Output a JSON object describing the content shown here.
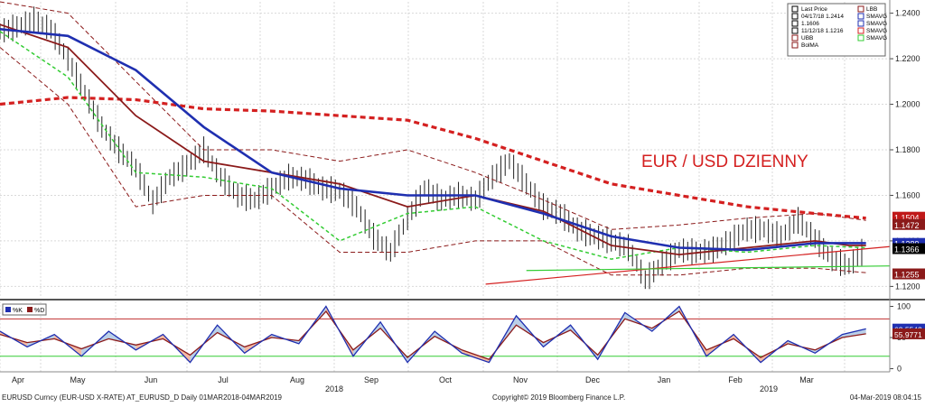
{
  "chart_data": [
    {
      "type": "line",
      "title": "EUR / USD DZIENNY",
      "ylim": [
        1.115,
        1.245
      ],
      "yticks": [
        1.12,
        1.14,
        1.16,
        1.18,
        1.2,
        1.22,
        1.24
      ],
      "ytick_labels": [
        "1.1200",
        "1.1400",
        "1.1600",
        "1.1800",
        "1.2000",
        "1.2200",
        "1.2400"
      ],
      "grid": true,
      "legend_position": "top-right",
      "legend": {
        "rows": [
          {
            "label": "Last Price",
            "color": "#000000"
          },
          {
            "label": "04/17/18 1.2414",
            "color": "#000000"
          },
          {
            "label": "1.1606",
            "color": "#000000"
          },
          {
            "label": "11/12/18 1.1216",
            "color": "#000000"
          },
          {
            "label": "UBB",
            "color": "#8b1a1a"
          },
          {
            "label": "BolMA",
            "color": "#8b1a1a"
          }
        ],
        "right_rows": [
          {
            "label": "LBB",
            "color": "#8b1a1a"
          },
          {
            "label": "SMAVG",
            "color": "#1f2fb0"
          },
          {
            "label": "SMAVG",
            "color": "#1f2fb0"
          },
          {
            "label": "SMAVG",
            "color": "#d42020"
          },
          {
            "label": "SMAVG",
            "color": "#33cc33"
          }
        ]
      },
      "price_tags": [
        {
          "label": "1.1504",
          "value": 1.1504,
          "color": "#c01818"
        },
        {
          "label": "1.1472",
          "value": 1.1472,
          "color": "#8b1a1a"
        },
        {
          "label": "1.1389",
          "value": 1.1389,
          "color": "#1f2fb0"
        },
        {
          "label": "1.1366",
          "value": 1.1366,
          "color": "#000000"
        },
        {
          "label": "1.1255",
          "value": 1.1255,
          "color": "#8b1a1a"
        }
      ],
      "x_month_labels": [
        "Apr",
        "May",
        "Jun",
        "Jul",
        "Aug",
        "Sep",
        "Oct",
        "Nov",
        "Dec",
        "Jan",
        "Feb",
        "Mar"
      ],
      "x_year_labels": [
        "2018",
        "2019"
      ],
      "series": [
        {
          "name": "Last Price",
          "color": "#000000",
          "x": [
            0,
            5,
            10,
            15,
            20,
            25,
            30,
            35,
            40,
            45,
            50,
            55,
            60,
            65,
            70,
            75,
            80,
            85,
            90,
            95,
            100,
            105,
            110,
            115,
            120,
            125,
            130,
            135,
            140,
            145,
            150,
            155,
            160,
            165,
            170,
            175,
            180,
            185,
            190,
            195,
            200,
            205,
            210,
            215,
            220,
            225,
            230,
            235,
            240,
            245,
            250,
            255
          ],
          "y": [
            1.232,
            1.234,
            1.237,
            1.233,
            1.22,
            1.205,
            1.19,
            1.18,
            1.172,
            1.157,
            1.168,
            1.173,
            1.18,
            1.168,
            1.16,
            1.158,
            1.163,
            1.168,
            1.167,
            1.163,
            1.162,
            1.155,
            1.142,
            1.135,
            1.15,
            1.163,
            1.158,
            1.16,
            1.158,
            1.168,
            1.175,
            1.165,
            1.155,
            1.152,
            1.145,
            1.142,
            1.14,
            1.137,
            1.123,
            1.13,
            1.136,
            1.135,
            1.136,
            1.14,
            1.145,
            1.145,
            1.142,
            1.149,
            1.141,
            1.132,
            1.129,
            1.137
          ]
        },
        {
          "name": "SMAVG",
          "color": "#1f2fb0",
          "x": [
            0,
            20,
            40,
            60,
            80,
            100,
            120,
            140,
            160,
            180,
            200,
            220,
            240,
            250,
            255
          ],
          "y": [
            1.233,
            1.23,
            1.215,
            1.19,
            1.17,
            1.163,
            1.16,
            1.16,
            1.152,
            1.142,
            1.137,
            1.136,
            1.139,
            1.139,
            1.139
          ]
        },
        {
          "name": "BolMA",
          "color": "#8b1a1a",
          "x": [
            0,
            20,
            40,
            60,
            80,
            100,
            120,
            140,
            160,
            180,
            200,
            220,
            240,
            250,
            255
          ],
          "y": [
            1.235,
            1.225,
            1.195,
            1.175,
            1.17,
            1.165,
            1.155,
            1.16,
            1.153,
            1.138,
            1.134,
            1.137,
            1.14,
            1.138,
            1.138
          ]
        },
        {
          "name": "SMAVG",
          "color": "#d42020",
          "x": [
            0,
            20,
            40,
            60,
            80,
            100,
            120,
            140,
            160,
            180,
            200,
            220,
            240,
            255
          ],
          "y": [
            1.2,
            1.203,
            1.202,
            1.198,
            1.197,
            1.195,
            1.193,
            1.185,
            1.175,
            1.165,
            1.16,
            1.155,
            1.152,
            1.15
          ]
        },
        {
          "name": "SMAVG",
          "color": "#33cc33",
          "x": [
            0,
            20,
            40,
            60,
            80,
            100,
            120,
            140,
            160,
            180,
            200,
            220,
            240,
            255
          ],
          "y": [
            1.232,
            1.212,
            1.17,
            1.168,
            1.163,
            1.14,
            1.152,
            1.155,
            1.14,
            1.132,
            1.137,
            1.135,
            1.138,
            1.137
          ]
        },
        {
          "name": "UBB",
          "color": "#8b1a1a",
          "x": [
            0,
            20,
            40,
            60,
            80,
            100,
            120,
            140,
            160,
            180,
            200,
            220,
            240,
            255
          ],
          "y": [
            1.245,
            1.24,
            1.21,
            1.18,
            1.18,
            1.175,
            1.18,
            1.17,
            1.158,
            1.145,
            1.147,
            1.15,
            1.152,
            1.149
          ]
        },
        {
          "name": "LBB",
          "color": "#8b1a1a",
          "x": [
            0,
            20,
            40,
            60,
            80,
            100,
            120,
            140,
            160,
            180,
            200,
            220,
            240,
            255
          ],
          "y": [
            1.225,
            1.2,
            1.155,
            1.16,
            1.16,
            1.135,
            1.135,
            1.14,
            1.14,
            1.125,
            1.125,
            1.128,
            1.128,
            1.126
          ]
        }
      ],
      "annotations": [
        {
          "text": "EUR / USD DZIENNY",
          "color": "#d42020"
        }
      ],
      "trendlines": [
        {
          "color": "#d42020",
          "from": [
            143,
            1.121
          ],
          "to": [
            262,
            1.1375
          ]
        },
        {
          "color": "#33cc33",
          "from": [
            155,
            1.127
          ],
          "to": [
            262,
            1.129
          ]
        }
      ]
    },
    {
      "type": "line",
      "title": "",
      "ylim": [
        -5,
        108
      ],
      "yticks": [
        0,
        50,
        100
      ],
      "ytick_labels": [
        "0",
        "50",
        "100"
      ],
      "legend": [
        {
          "label": "%K",
          "color": "#1f2fb0"
        },
        {
          "label": "%D",
          "color": "#8b1a1a"
        }
      ],
      "reference_lines": [
        {
          "value": 80,
          "color": "#c03030"
        },
        {
          "value": 20,
          "color": "#33cc33"
        }
      ],
      "price_tags": [
        {
          "label": "63.5542",
          "value": 63.5542,
          "color": "#1f2fb0"
        },
        {
          "label": "55.9771",
          "value": 55.9771,
          "color": "#8b1a1a"
        }
      ],
      "series": [
        {
          "name": "%K",
          "color": "#1f2fb0",
          "x": [
            0,
            8,
            16,
            24,
            32,
            40,
            48,
            56,
            64,
            72,
            80,
            88,
            96,
            104,
            112,
            120,
            128,
            136,
            144,
            152,
            160,
            168,
            176,
            184,
            192,
            200,
            208,
            216,
            224,
            232,
            240,
            248,
            255
          ],
          "y": [
            60,
            35,
            55,
            20,
            60,
            30,
            55,
            10,
            70,
            25,
            55,
            40,
            100,
            20,
            75,
            10,
            60,
            25,
            10,
            85,
            35,
            70,
            15,
            90,
            60,
            100,
            20,
            55,
            10,
            45,
            25,
            55,
            64
          ]
        },
        {
          "name": "%D",
          "color": "#8b1a1a",
          "x": [
            0,
            8,
            16,
            24,
            32,
            40,
            48,
            56,
            64,
            72,
            80,
            88,
            96,
            104,
            112,
            120,
            128,
            136,
            144,
            152,
            160,
            168,
            176,
            184,
            192,
            200,
            208,
            216,
            224,
            232,
            240,
            248,
            255
          ],
          "y": [
            55,
            42,
            48,
            32,
            48,
            38,
            48,
            22,
            58,
            35,
            50,
            45,
            92,
            30,
            65,
            18,
            52,
            30,
            15,
            70,
            42,
            62,
            22,
            80,
            65,
            92,
            30,
            48,
            18,
            40,
            30,
            50,
            56
          ]
        }
      ]
    }
  ],
  "footer": {
    "left": "EURUSD Curncy (EUR-USD X-RATE) AT_EURUSD_D  Daily 01MAR2018-04MAR2019",
    "center": "Copyright© 2019 Bloomberg Finance L.P.",
    "right": "04-Mar-2019 08:04:15"
  }
}
